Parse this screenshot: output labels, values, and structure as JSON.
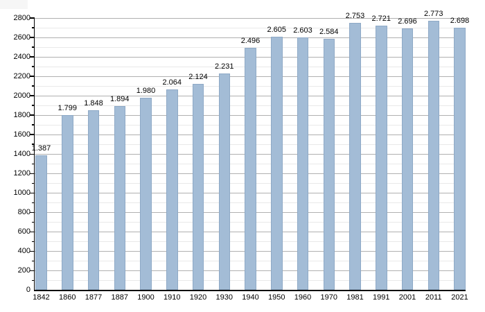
{
  "chart_data": {
    "type": "bar",
    "title": "",
    "xlabel": "",
    "ylabel": "",
    "categories": [
      "1842",
      "1860",
      "1877",
      "1887",
      "1900",
      "1910",
      "1920",
      "1930",
      "1940",
      "1950",
      "1960",
      "1970",
      "1981",
      "1991",
      "2001",
      "2011",
      "2021"
    ],
    "values": [
      1387,
      1799,
      1848,
      1894,
      1980,
      2064,
      2124,
      2231,
      2496,
      2605,
      2603,
      2584,
      2753,
      2721,
      2696,
      2773,
      2698
    ],
    "value_labels": [
      "1.387",
      "1.799",
      "1.848",
      "1.894",
      "1.980",
      "2.064",
      "2.124",
      "2.231",
      "2.496",
      "2.605",
      "2.603",
      "2.584",
      "2.753",
      "2.721",
      "2.696",
      "2.773",
      "2.698"
    ],
    "ylim": [
      0,
      2800
    ],
    "y_major_step": 200,
    "y_minor_step": 100,
    "y_tick_labels": [
      "0",
      "200",
      "400",
      "600",
      "800",
      "1000",
      "1200",
      "1400",
      "1600",
      "1800",
      "2000",
      "2200",
      "2400",
      "2600",
      "2800"
    ],
    "grid": "on",
    "legend": "none",
    "colors": {
      "bar_fill": "#a3bcd6",
      "bar_border": "#8ea9c6",
      "gridline_major": "#b0b0b0",
      "gridline_minor": "#e9e9e9",
      "axis": "#000000",
      "text": "#000000",
      "background": "#ffffff",
      "corner_artifact": "#f6f6f6"
    }
  }
}
